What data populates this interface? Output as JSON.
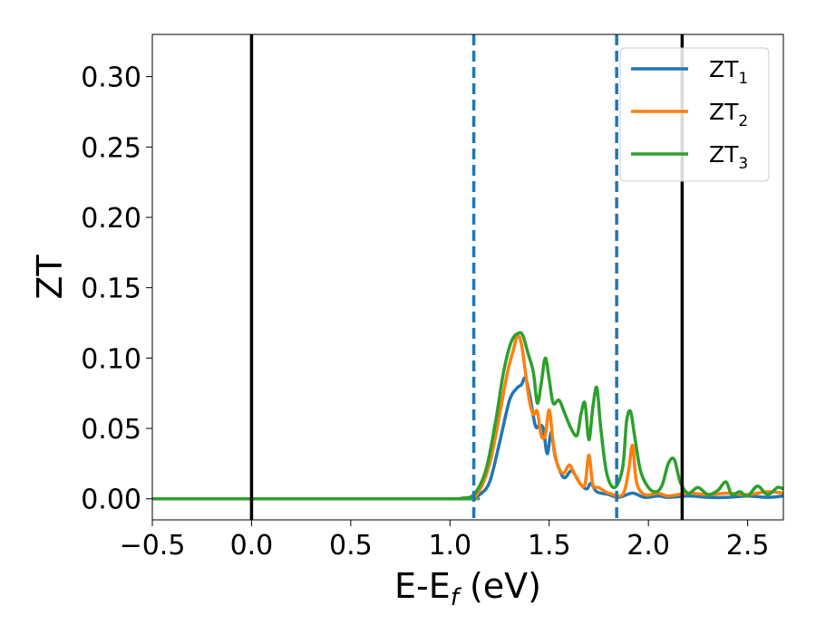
{
  "chart_data": {
    "type": "line",
    "xlabel": {
      "main": "E-E",
      "sub": "f",
      "unit": " (eV)"
    },
    "ylabel": "ZT",
    "xlim": [
      -0.5,
      2.68
    ],
    "ylim": [
      -0.015,
      0.33
    ],
    "xticks": [
      -0.5,
      0.0,
      0.5,
      1.0,
      1.5,
      2.0,
      2.5
    ],
    "xtick_labels": [
      "−0.5",
      "0.0",
      "0.5",
      "1.0",
      "1.5",
      "2.0",
      "2.5"
    ],
    "yticks": [
      0.0,
      0.05,
      0.1,
      0.15,
      0.2,
      0.25,
      0.3
    ],
    "ytick_labels": [
      "0.00",
      "0.05",
      "0.10",
      "0.15",
      "0.20",
      "0.25",
      "0.30"
    ],
    "legend_position": "top-right",
    "vlines": [
      {
        "x": 0.0,
        "style": "solid",
        "color": "#000000"
      },
      {
        "x": 1.12,
        "style": "dashed",
        "color": "#1f77b4"
      },
      {
        "x": 1.84,
        "style": "dashed",
        "color": "#1f77b4"
      },
      {
        "x": 2.17,
        "style": "solid",
        "color": "#000000"
      }
    ],
    "series": [
      {
        "name": "ZT",
        "sub": "1",
        "color": "#1f77b4",
        "points": [
          [
            -0.5,
            0
          ],
          [
            1.0,
            0
          ],
          [
            1.1,
            0.0005
          ],
          [
            1.15,
            0.003
          ],
          [
            1.2,
            0.012
          ],
          [
            1.25,
            0.04
          ],
          [
            1.3,
            0.07
          ],
          [
            1.34,
            0.079
          ],
          [
            1.36,
            0.081
          ],
          [
            1.38,
            0.086
          ],
          [
            1.4,
            0.075
          ],
          [
            1.43,
            0.052
          ],
          [
            1.45,
            0.052
          ],
          [
            1.47,
            0.05
          ],
          [
            1.49,
            0.032
          ],
          [
            1.51,
            0.047
          ],
          [
            1.53,
            0.03
          ],
          [
            1.56,
            0.018
          ],
          [
            1.58,
            0.015
          ],
          [
            1.61,
            0.02
          ],
          [
            1.63,
            0.017
          ],
          [
            1.66,
            0.01
          ],
          [
            1.69,
            0.007
          ],
          [
            1.71,
            0.011
          ],
          [
            1.74,
            0.005
          ],
          [
            1.8,
            0.003
          ],
          [
            1.85,
            0.001
          ],
          [
            1.92,
            0.004
          ],
          [
            1.98,
            0.001
          ],
          [
            2.05,
            0.002
          ],
          [
            2.1,
            0.001
          ],
          [
            2.2,
            0.002
          ],
          [
            2.3,
            0.001
          ],
          [
            2.4,
            0.001
          ],
          [
            2.5,
            0.002
          ],
          [
            2.6,
            0.001
          ],
          [
            2.68,
            0.002
          ]
        ]
      },
      {
        "name": "ZT",
        "sub": "2",
        "color": "#ff7f0e",
        "points": [
          [
            -0.5,
            0
          ],
          [
            1.0,
            0
          ],
          [
            1.08,
            0.0005
          ],
          [
            1.14,
            0.004
          ],
          [
            1.2,
            0.025
          ],
          [
            1.25,
            0.06
          ],
          [
            1.29,
            0.09
          ],
          [
            1.32,
            0.106
          ],
          [
            1.34,
            0.116
          ],
          [
            1.36,
            0.11
          ],
          [
            1.38,
            0.09
          ],
          [
            1.4,
            0.07
          ],
          [
            1.42,
            0.06
          ],
          [
            1.44,
            0.062
          ],
          [
            1.46,
            0.045
          ],
          [
            1.48,
            0.045
          ],
          [
            1.5,
            0.063
          ],
          [
            1.52,
            0.04
          ],
          [
            1.54,
            0.025
          ],
          [
            1.57,
            0.018
          ],
          [
            1.6,
            0.024
          ],
          [
            1.62,
            0.02
          ],
          [
            1.65,
            0.012
          ],
          [
            1.68,
            0.01
          ],
          [
            1.7,
            0.031
          ],
          [
            1.72,
            0.01
          ],
          [
            1.75,
            0.008
          ],
          [
            1.8,
            0.004
          ],
          [
            1.87,
            0.003
          ],
          [
            1.9,
            0.02
          ],
          [
            1.92,
            0.038
          ],
          [
            1.94,
            0.012
          ],
          [
            1.98,
            0.003
          ],
          [
            2.05,
            0.004
          ],
          [
            2.1,
            0.002
          ],
          [
            2.2,
            0.004
          ],
          [
            2.3,
            0.003
          ],
          [
            2.4,
            0.004
          ],
          [
            2.5,
            0.003
          ],
          [
            2.6,
            0.005
          ],
          [
            2.68,
            0.004
          ]
        ]
      },
      {
        "name": "ZT",
        "sub": "3",
        "color": "#2ca02c",
        "points": [
          [
            -0.5,
            0
          ],
          [
            1.0,
            0
          ],
          [
            1.06,
            0.0005
          ],
          [
            1.12,
            0.003
          ],
          [
            1.18,
            0.02
          ],
          [
            1.23,
            0.055
          ],
          [
            1.27,
            0.09
          ],
          [
            1.31,
            0.112
          ],
          [
            1.35,
            0.118
          ],
          [
            1.37,
            0.115
          ],
          [
            1.39,
            0.105
          ],
          [
            1.42,
            0.09
          ],
          [
            1.44,
            0.068
          ],
          [
            1.46,
            0.082
          ],
          [
            1.48,
            0.1
          ],
          [
            1.5,
            0.085
          ],
          [
            1.52,
            0.068
          ],
          [
            1.55,
            0.07
          ],
          [
            1.58,
            0.06
          ],
          [
            1.61,
            0.05
          ],
          [
            1.64,
            0.045
          ],
          [
            1.66,
            0.06
          ],
          [
            1.68,
            0.068
          ],
          [
            1.7,
            0.042
          ],
          [
            1.72,
            0.065
          ],
          [
            1.74,
            0.079
          ],
          [
            1.76,
            0.05
          ],
          [
            1.79,
            0.018
          ],
          [
            1.83,
            0.008
          ],
          [
            1.87,
            0.022
          ],
          [
            1.89,
            0.055
          ],
          [
            1.91,
            0.062
          ],
          [
            1.93,
            0.045
          ],
          [
            1.96,
            0.02
          ],
          [
            2.0,
            0.008
          ],
          [
            2.04,
            0.005
          ],
          [
            2.07,
            0.01
          ],
          [
            2.1,
            0.025
          ],
          [
            2.13,
            0.028
          ],
          [
            2.16,
            0.012
          ],
          [
            2.2,
            0.004
          ],
          [
            2.25,
            0.008
          ],
          [
            2.3,
            0.003
          ],
          [
            2.35,
            0.006
          ],
          [
            2.39,
            0.012
          ],
          [
            2.42,
            0.003
          ],
          [
            2.46,
            0.005
          ],
          [
            2.5,
            0.002
          ],
          [
            2.55,
            0.009
          ],
          [
            2.6,
            0.003
          ],
          [
            2.65,
            0.008
          ],
          [
            2.68,
            0.007
          ]
        ]
      }
    ]
  }
}
